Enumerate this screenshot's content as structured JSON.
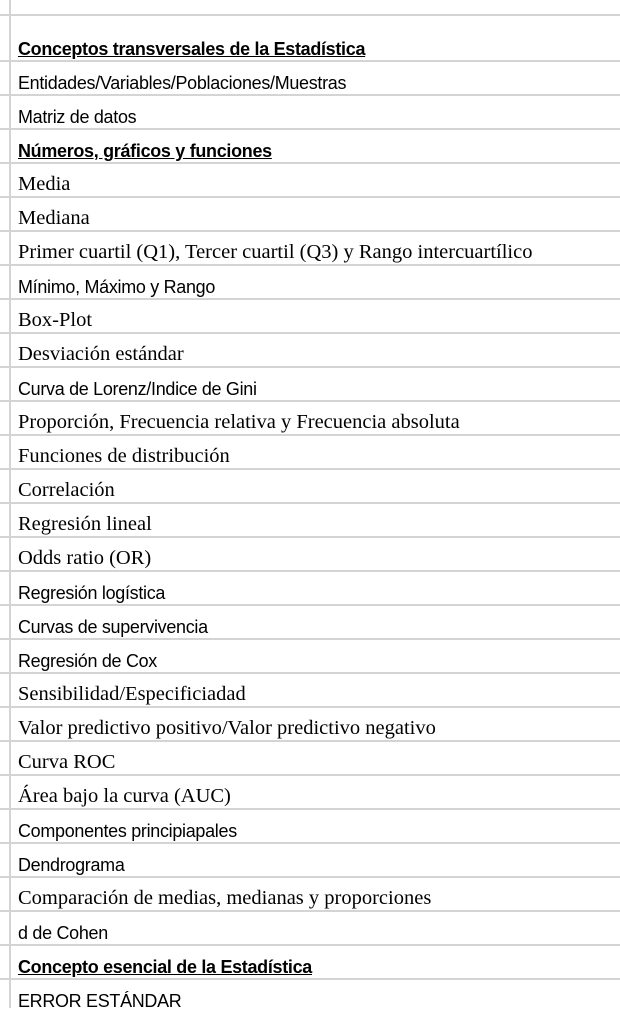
{
  "rows": [
    {
      "text": "Conceptos transversales de la Estadística",
      "style": "header"
    },
    {
      "text": "Entidades/Variables/Poblaciones/Muestras",
      "style": "sans"
    },
    {
      "text": "Matriz de datos",
      "style": "sans"
    },
    {
      "text": "Números, gráficos y funciones",
      "style": "header"
    },
    {
      "text": "Media",
      "style": "serif"
    },
    {
      "text": "Mediana",
      "style": "serif"
    },
    {
      "text": "Primer cuartil (Q1), Tercer cuartil (Q3) y Rango intercuartílico",
      "style": "serif"
    },
    {
      "text": "Mínimo, Máximo y Rango",
      "style": "sans"
    },
    {
      "text": "Box-Plot",
      "style": "serif"
    },
    {
      "text": "Desviación estándar",
      "style": "serif"
    },
    {
      "text": "Curva de Lorenz/Indice de Gini",
      "style": "sans"
    },
    {
      "text": "Proporción, Frecuencia relativa y Frecuencia absoluta",
      "style": "serif"
    },
    {
      "text": "Funciones de distribución",
      "style": "serif"
    },
    {
      "text": "Correlación",
      "style": "serif"
    },
    {
      "text": "Regresión lineal",
      "style": "serif"
    },
    {
      "text": "Odds ratio (OR)",
      "style": "serif"
    },
    {
      "text": "Regresión logística",
      "style": "sans"
    },
    {
      "text": "Curvas de supervivencia",
      "style": "sans"
    },
    {
      "text": "Regresión de Cox",
      "style": "sans"
    },
    {
      "text": "Sensibilidad/Especificiadad",
      "style": "serif"
    },
    {
      "text": "Valor predictivo positivo/Valor predictivo negativo",
      "style": "serif"
    },
    {
      "text": "Curva ROC",
      "style": "serif"
    },
    {
      "text": "Área bajo la curva (AUC)",
      "style": "serif"
    },
    {
      "text": "Componentes principiapales",
      "style": "sans"
    },
    {
      "text": "Dendrograma",
      "style": "sans"
    },
    {
      "text": "Comparación de medias, medianas y proporciones",
      "style": "serif"
    },
    {
      "text": "d de Cohen",
      "style": "sans"
    },
    {
      "text": "Concepto esencial de la Estadística",
      "style": "header"
    },
    {
      "text": "ERROR ESTÁNDAR",
      "style": "sans"
    }
  ]
}
